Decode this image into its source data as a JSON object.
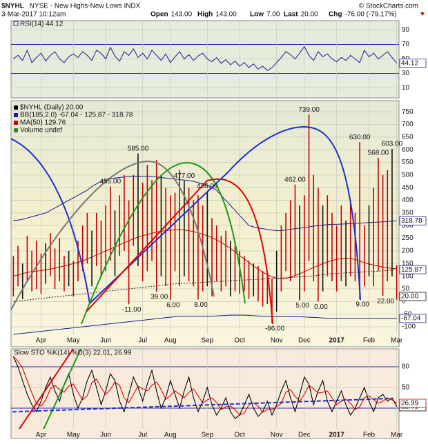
{
  "header": {
    "symbol": "$NYHL",
    "description": "NYSE - New Highs-New Lows INDX",
    "copyright": "© StockCharts.com",
    "date": "3-Mar-2017 10:12am",
    "quote": [
      {
        "label": "Open",
        "value": "143.00"
      },
      {
        "label": "High",
        "value": "143.00"
      },
      {
        "label": "Low",
        "value": "7.00"
      },
      {
        "label": "Last",
        "value": "20.00"
      },
      {
        "label": "Chg",
        "value": "-76.00 (-79.17%)"
      }
    ]
  },
  "chart_data": [
    {
      "type": "line",
      "series": [
        {
          "name": "RSI(14) 44.12",
          "color": "#2b2b99",
          "values": [
            50,
            55,
            48,
            62,
            45,
            52,
            58,
            47,
            55,
            60,
            50,
            45,
            53,
            57,
            52,
            60,
            55,
            48,
            62,
            58,
            50,
            66,
            54,
            47,
            60,
            55,
            64,
            52,
            58,
            50,
            62,
            55,
            48,
            57,
            45,
            53,
            60,
            50,
            56,
            48,
            54,
            58,
            50,
            46,
            52,
            44,
            49,
            42,
            47,
            40,
            45,
            38,
            43,
            36,
            40,
            34,
            38,
            45,
            52,
            60,
            56,
            50,
            58,
            67,
            55,
            48,
            60,
            53,
            57,
            50,
            46,
            52,
            48,
            55,
            50,
            45,
            62,
            53,
            58,
            50,
            55,
            60,
            52,
            44.12
          ],
          "last_label": "44.12"
        }
      ],
      "ylim": [
        0,
        100
      ],
      "yticks": [
        10,
        30,
        50,
        70,
        90
      ],
      "levels": [
        30,
        70
      ],
      "grid": true
    },
    {
      "type": "hl-bar",
      "color": "#c00000",
      "legend": [
        {
          "text": "$NYHL (Daily) 20.00",
          "color": "#000000"
        },
        {
          "text": "BB(185,2.0) -67.04 - 125.87 - 318.78",
          "color": "#1a1a99"
        },
        {
          "text": "MA(50) 129.76",
          "color": "#cc0000"
        },
        {
          "text": "Volume undef",
          "color": "#2a8a2a"
        }
      ],
      "categories": [
        null,
        null,
        null,
        null,
        null,
        null,
        "Apr",
        null,
        null,
        null,
        null,
        null,
        null,
        "May",
        null,
        null,
        null,
        null,
        null,
        null,
        "Jun",
        null,
        null,
        null,
        null,
        null,
        null,
        null,
        "Jul",
        null,
        null,
        null,
        null,
        null,
        "Aug",
        null,
        null,
        null,
        null,
        null,
        null,
        null,
        "Sep",
        null,
        null,
        null,
        null,
        null,
        null,
        "Oct",
        null,
        null,
        null,
        null,
        null,
        null,
        null,
        "Nov",
        null,
        null,
        null,
        null,
        null,
        "Dec",
        null,
        null,
        null,
        null,
        null,
        null,
        "2017",
        null,
        null,
        null,
        null,
        null,
        null,
        "Feb",
        null,
        null,
        null,
        null,
        null,
        "Mar"
      ],
      "high": [
        180,
        220,
        150,
        260,
        200,
        240,
        190,
        230,
        270,
        210,
        250,
        180,
        200,
        160,
        240,
        300,
        350,
        280,
        350,
        320,
        380,
        455,
        360,
        420,
        500,
        400,
        500,
        585,
        470,
        540,
        480,
        560,
        500,
        450,
        420,
        430,
        520,
        477,
        450,
        400,
        420,
        380,
        436,
        330,
        300,
        260,
        280,
        240,
        220,
        200,
        180,
        160,
        150,
        140,
        120,
        100,
        90,
        200,
        300,
        350,
        400,
        462,
        380,
        420,
        739,
        500,
        450,
        380,
        420,
        350,
        300,
        380,
        320,
        400,
        350,
        630,
        300,
        380,
        450,
        568,
        500,
        520,
        603,
        143
      ],
      "low": [
        20,
        60,
        10,
        80,
        40,
        50,
        30,
        70,
        100,
        50,
        80,
        40,
        60,
        20,
        80,
        120,
        150,
        60,
        140,
        100,
        120,
        160,
        100,
        180,
        200,
        -11,
        220,
        140,
        80,
        120,
        160,
        39,
        100,
        60,
        6,
        120,
        60,
        100,
        80,
        60,
        8,
        40,
        60,
        20,
        80,
        40,
        60,
        20,
        40,
        30,
        40,
        10,
        20,
        0,
        -20,
        -10,
        -86,
        -40,
        40,
        120,
        80,
        100,
        5,
        40,
        160,
        80,
        0,
        40,
        100,
        80,
        40,
        80,
        60,
        100,
        80,
        9,
        60,
        100,
        60,
        120,
        22,
        80,
        100,
        7
      ],
      "high_labels": [
        null,
        null,
        null,
        null,
        null,
        null,
        null,
        null,
        null,
        null,
        null,
        null,
        null,
        null,
        null,
        null,
        null,
        null,
        null,
        null,
        null,
        "455.00",
        null,
        null,
        null,
        null,
        null,
        "585.00",
        null,
        null,
        null,
        null,
        null,
        null,
        null,
        null,
        null,
        "477.00",
        null,
        null,
        null,
        null,
        "436.00",
        null,
        null,
        null,
        null,
        null,
        null,
        null,
        null,
        null,
        null,
        null,
        null,
        null,
        null,
        null,
        null,
        null,
        null,
        "462.00",
        null,
        null,
        "739.00",
        null,
        null,
        null,
        null,
        null,
        null,
        null,
        null,
        null,
        null,
        "630.00",
        null,
        null,
        null,
        "568.00",
        null,
        null,
        "603.00",
        null
      ],
      "low_labels": [
        null,
        null,
        null,
        null,
        null,
        null,
        null,
        null,
        null,
        null,
        null,
        null,
        null,
        null,
        null,
        null,
        null,
        null,
        null,
        null,
        null,
        null,
        null,
        null,
        null,
        "-11.00",
        null,
        null,
        null,
        null,
        null,
        "39.00",
        null,
        null,
        "6.00",
        null,
        null,
        null,
        null,
        null,
        "8.00",
        null,
        null,
        null,
        null,
        null,
        null,
        null,
        null,
        null,
        null,
        null,
        null,
        null,
        null,
        null,
        "-86.00",
        null,
        null,
        null,
        null,
        null,
        "5.00",
        null,
        null,
        null,
        "0.00",
        null,
        null,
        null,
        null,
        null,
        null,
        null,
        null,
        "9.00",
        null,
        null,
        null,
        null,
        "22.00",
        null,
        null,
        null
      ],
      "bb": {
        "color": "#1a1a99",
        "upper": [
          320,
          322,
          325,
          330,
          335,
          340,
          345,
          350,
          360,
          370,
          380,
          390,
          400,
          410,
          420,
          430,
          440,
          455,
          465,
          475,
          480,
          485,
          488,
          490,
          492,
          494,
          495,
          495,
          495,
          494,
          493,
          492,
          490,
          488,
          486,
          484,
          482,
          480,
          478,
          475,
          470,
          465,
          460,
          450,
          440,
          420,
          400,
          380,
          360,
          340,
          320,
          300,
          295,
          290,
          288,
          285,
          282,
          280,
          280,
          282,
          285,
          288,
          290,
          292,
          295,
          298,
          300,
          302,
          304,
          305,
          305,
          306,
          307,
          308,
          309,
          310,
          311,
          312,
          313,
          314,
          315,
          316,
          318,
          318.78
        ],
        "middle": [
          0,
          2,
          4,
          6,
          8,
          10,
          12,
          14,
          16,
          18,
          20,
          22,
          24,
          26,
          28,
          30,
          32,
          34,
          36,
          38,
          40,
          42,
          44,
          46,
          48,
          50,
          52,
          54,
          56,
          58,
          60,
          62,
          64,
          66,
          68,
          70,
          71,
          72,
          73,
          74,
          75,
          76,
          77,
          78,
          79,
          80,
          81,
          82,
          83,
          84,
          85,
          86,
          87,
          88,
          89,
          90,
          91,
          92,
          93,
          94,
          95,
          96,
          97,
          98,
          100,
          102,
          104,
          106,
          108,
          110,
          111,
          112,
          113,
          114,
          115,
          116,
          117,
          118,
          119,
          120,
          121,
          122,
          124,
          125.87
        ],
        "lower": [
          -130,
          -128,
          -126,
          -124,
          -122,
          -120,
          -118,
          -116,
          -114,
          -112,
          -110,
          -108,
          -106,
          -104,
          -102,
          -100,
          -98,
          -96,
          -94,
          -92,
          -90,
          -88,
          -86,
          -84,
          -82,
          -80,
          -78,
          -76,
          -74,
          -72,
          -70,
          -68,
          -66,
          -64,
          -62,
          -60,
          -58,
          -58,
          -58,
          -58,
          -58,
          -58,
          -58,
          -58,
          -57,
          -56,
          -55,
          -54,
          -54,
          -54,
          -54,
          -55,
          -56,
          -57,
          -58,
          -59,
          -60,
          -60,
          -60,
          -60,
          -60,
          -60,
          -60,
          -61,
          -62,
          -63,
          -64,
          -65,
          -66,
          -66,
          -66,
          -66,
          -66,
          -66,
          -66,
          -66,
          -66,
          -66,
          -66,
          -66,
          -67,
          -67,
          -67,
          -67.04
        ]
      },
      "ma": {
        "color": "#cc0000",
        "values": [
          100,
          105,
          110,
          115,
          118,
          120,
          122,
          125,
          128,
          132,
          136,
          140,
          145,
          150,
          155,
          160,
          168,
          176,
          184,
          192,
          200,
          208,
          216,
          224,
          232,
          240,
          248,
          255,
          260,
          265,
          270,
          274,
          278,
          280,
          282,
          283,
          284,
          282,
          280,
          276,
          272,
          266,
          260,
          252,
          244,
          234,
          222,
          210,
          196,
          182,
          168,
          154,
          140,
          128,
          116,
          106,
          98,
          92,
          90,
          92,
          96,
          102,
          110,
          118,
          126,
          134,
          142,
          150,
          156,
          162,
          166,
          170,
          172,
          170,
          166,
          160,
          154,
          148,
          144,
          140,
          136,
          133,
          131,
          129.76
        ]
      },
      "axis_tags": [
        {
          "value": 318.78,
          "label": "318.78",
          "color": "#1a1a99"
        },
        {
          "value": 125.87,
          "label": "125.87",
          "color": "#1a1a99"
        },
        {
          "value": 20,
          "label": "20.00",
          "color": "#000000"
        },
        {
          "value": -67.04,
          "label": "-67.04",
          "color": "#1a1a99"
        }
      ],
      "ylim": [
        -130,
        794
      ],
      "yticks": [
        -100,
        -50,
        0,
        50,
        100,
        150,
        200,
        250,
        300,
        350,
        400,
        450,
        500,
        550,
        600,
        650,
        700,
        750
      ],
      "grid": true
    },
    {
      "type": "line",
      "legend": "Slow STO %K(14) %D(3) 22.01, 26.99",
      "series": [
        {
          "name": "%K",
          "color": "#000000",
          "last_label": "22.01",
          "values": [
            95,
            80,
            60,
            40,
            25,
            15,
            30,
            50,
            65,
            45,
            30,
            55,
            70,
            40,
            20,
            35,
            60,
            75,
            50,
            25,
            45,
            70,
            60,
            30,
            15,
            40,
            65,
            50,
            30,
            55,
            75,
            45,
            20,
            35,
            60,
            40,
            20,
            45,
            65,
            35,
            15,
            30,
            50,
            25,
            10,
            20,
            35,
            15,
            5,
            10,
            25,
            40,
            20,
            8,
            15,
            30,
            10,
            25,
            45,
            60,
            35,
            15,
            40,
            65,
            55,
            25,
            45,
            60,
            30,
            15,
            30,
            45,
            25,
            10,
            20,
            35,
            50,
            30,
            15,
            35,
            40,
            30,
            35,
            22.01
          ]
        },
        {
          "name": "%D",
          "color": "#dd0000",
          "last_label": "26.99",
          "values": [
            95,
            88,
            78,
            60,
            42,
            27,
            23,
            32,
            48,
            53,
            47,
            43,
            52,
            55,
            43,
            32,
            38,
            57,
            62,
            50,
            40,
            47,
            58,
            53,
            35,
            28,
            40,
            52,
            48,
            45,
            53,
            58,
            47,
            33,
            38,
            45,
            40,
            35,
            43,
            48,
            38,
            27,
            32,
            35,
            28,
            18,
            22,
            23,
            18,
            10,
            13,
            25,
            28,
            23,
            14,
            18,
            18,
            22,
            27,
            43,
            47,
            37,
            30,
            40,
            53,
            48,
            42,
            43,
            45,
            35,
            25,
            30,
            33,
            27,
            18,
            22,
            35,
            38,
            32,
            27,
            30,
            35,
            32,
            26.99
          ]
        }
      ],
      "ylim": [
        -10,
        106
      ],
      "yticks": [
        20,
        50,
        80
      ],
      "levels": [
        20,
        80
      ],
      "grid": true
    }
  ]
}
